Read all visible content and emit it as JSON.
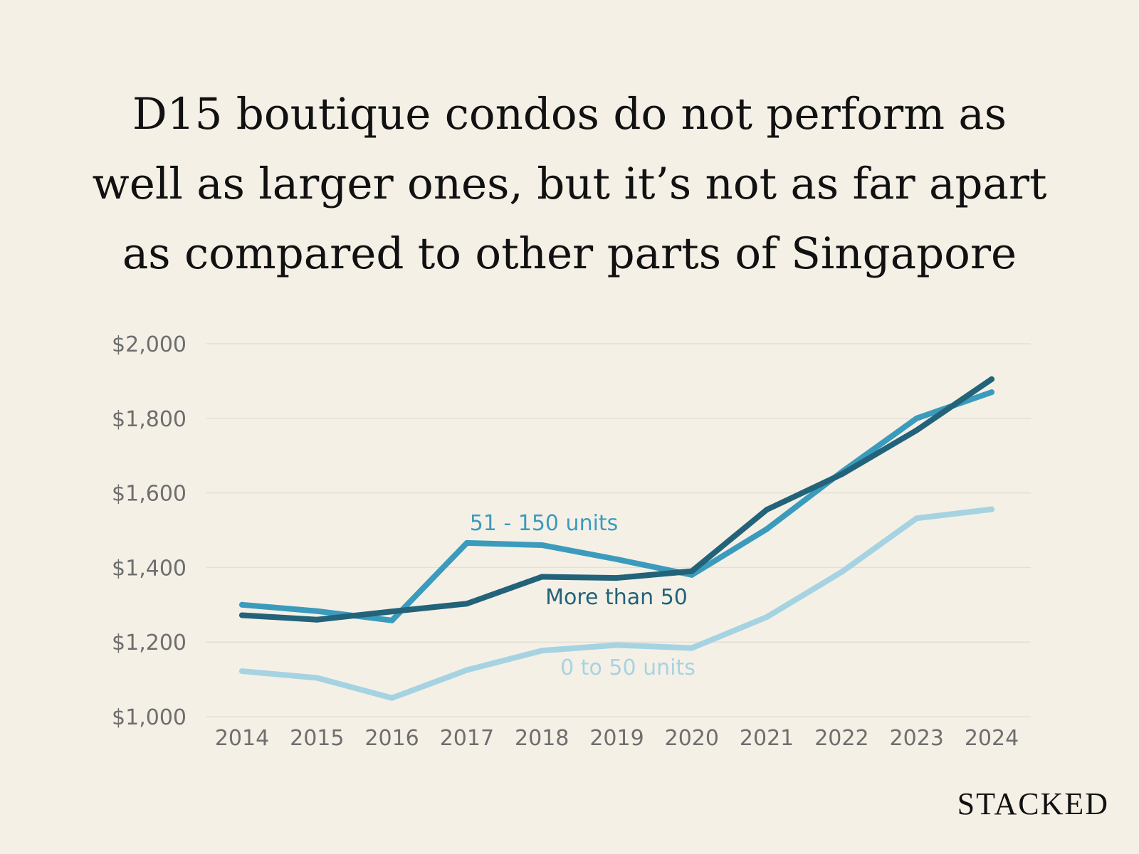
{
  "brand": "STACKED",
  "colors": {
    "background": "#f5f0e6",
    "grid": "#e4dfd4",
    "more_than_50": "#23637a",
    "u51_150": "#3b9bbd",
    "u0_50": "#a6d3e2"
  },
  "chart_data": {
    "type": "line",
    "title_lines": [
      "D15 boutique condos do not perform as",
      "well as larger ones, but it’s not as far apart",
      "as compared to other parts of Singapore"
    ],
    "xlabel": "",
    "ylabel": "",
    "categories": [
      "2014",
      "2015",
      "2016",
      "2017",
      "2018",
      "2019",
      "2020",
      "2021",
      "2022",
      "2023",
      "2024"
    ],
    "ylim": [
      1000,
      2000
    ],
    "yticks": [
      {
        "value": 2000,
        "label": "$2,000"
      },
      {
        "value": 1800,
        "label": "$1,800"
      },
      {
        "value": 1600,
        "label": "$1,600"
      },
      {
        "value": 1400,
        "label": "$1,400"
      },
      {
        "value": 1200,
        "label": "$1,200"
      },
      {
        "value": 1000,
        "label": "$1,000"
      }
    ],
    "grid": true,
    "legend": "inline labels",
    "series": [
      {
        "name": "0 to 50 units",
        "color": "#a6d3e2",
        "values": [
          1122,
          1104,
          1050,
          1125,
          1177,
          1192,
          1184,
          1267,
          1388,
          1532,
          1556
        ]
      },
      {
        "name": "51 - 150 units",
        "color": "#3b9bbd",
        "values": [
          1300,
          1283,
          1258,
          1466,
          1460,
          1422,
          1380,
          1503,
          1656,
          1800,
          1870
        ]
      },
      {
        "name": "More than 50",
        "color": "#23637a",
        "values": [
          1272,
          1260,
          1282,
          1303,
          1375,
          1372,
          1390,
          1555,
          1650,
          1768,
          1905
        ]
      }
    ]
  }
}
